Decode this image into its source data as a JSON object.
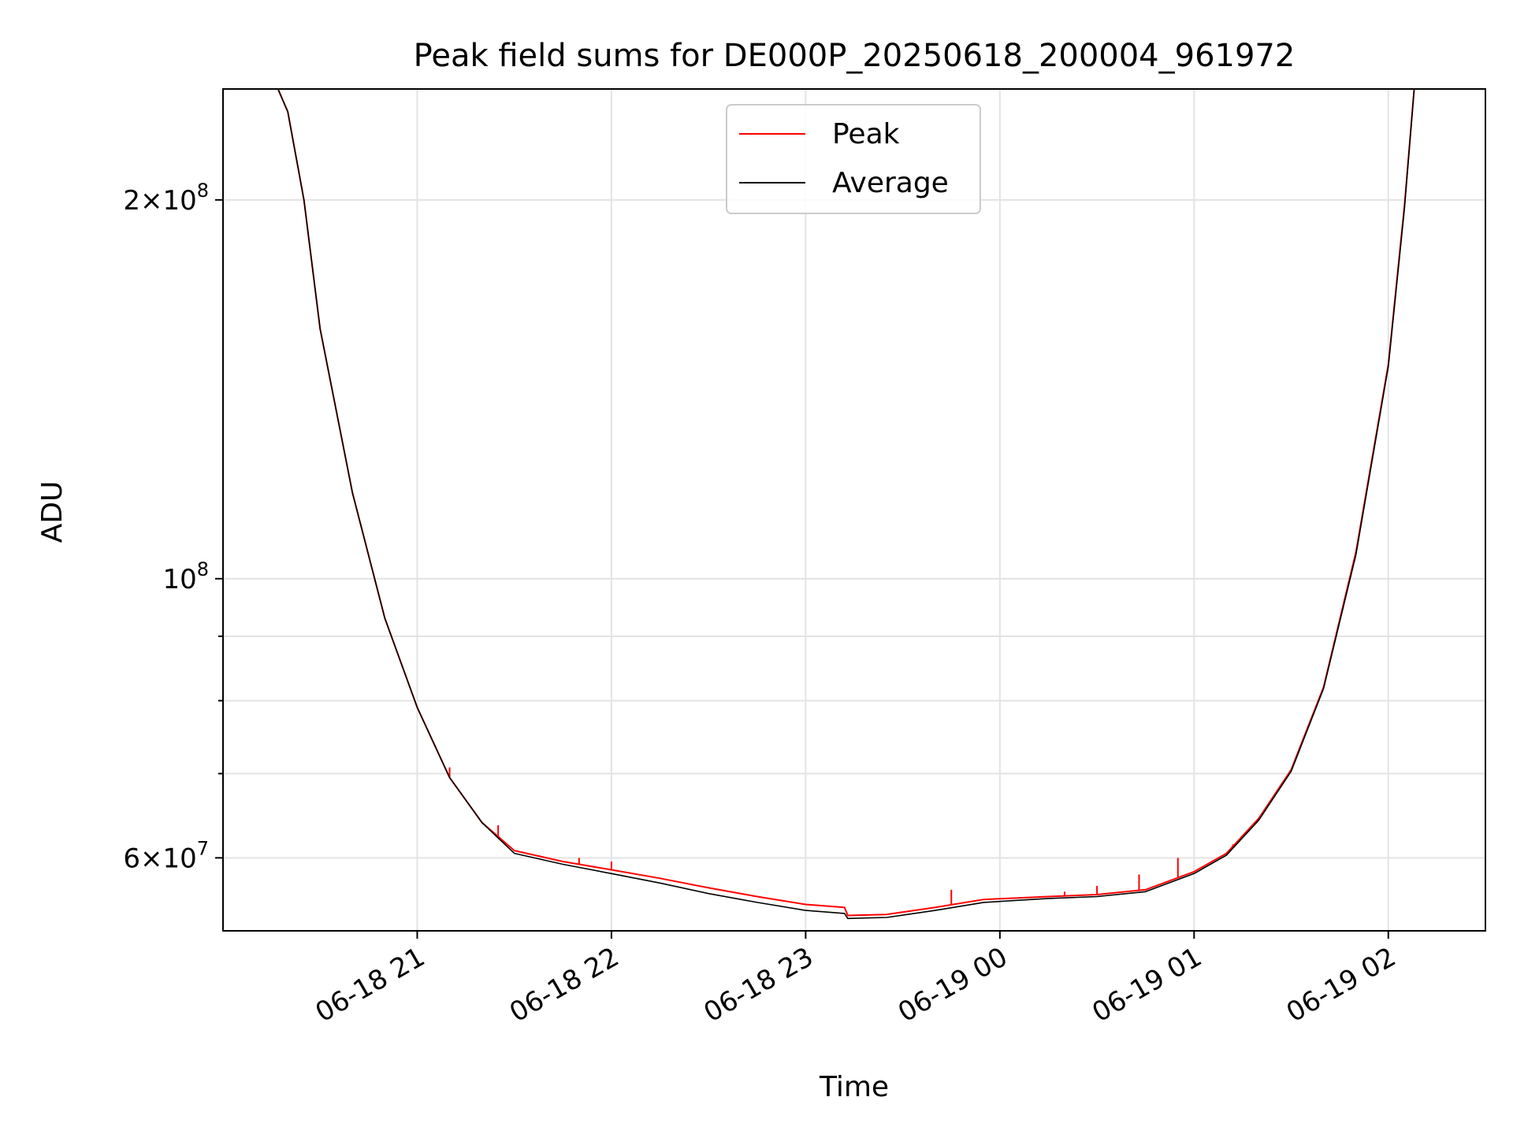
{
  "chart_data": {
    "type": "line",
    "title": "Peak field sums for DE000P_20250618_200004_961972",
    "xlabel": "Time",
    "ylabel": "ADU",
    "yscale": "log",
    "x_tick_labels": [
      "06-18 21",
      "06-18 22",
      "06-18 23",
      "06-19 00",
      "06-19 01",
      "06-19 02"
    ],
    "y_tick_labels": [
      {
        "value": 60000000,
        "base": "6",
        "times": "×",
        "exp": "10",
        "sup": "7"
      },
      {
        "value": 100000000,
        "base": "",
        "times": "",
        "exp": "10",
        "sup": "8"
      },
      {
        "value": 200000000,
        "base": "2",
        "times": "×",
        "exp": "10",
        "sup": "8"
      }
    ],
    "xlim": [
      "06-18 20:00",
      "06-19 02:30"
    ],
    "ylim": [
      52500000,
      245000000
    ],
    "grid": true,
    "legend_position": "upper center",
    "series": [
      {
        "name": "Peak",
        "color": "#ff0000",
        "x": [
          "06-18 20:00",
          "06-18 20:17",
          "06-18 20:20",
          "06-18 20:25",
          "06-18 20:30",
          "06-18 20:40",
          "06-18 20:50",
          "06-18 21:00",
          "06-18 21:10",
          "06-18 21:20",
          "06-18 21:30",
          "06-18 21:45",
          "06-18 22:00",
          "06-18 22:15",
          "06-18 22:30",
          "06-18 22:45",
          "06-18 23:00",
          "06-18 23:12",
          "06-18 23:13",
          "06-18 23:25",
          "06-18 23:40",
          "06-18 23:55",
          "06-19 00:15",
          "06-19 00:30",
          "06-19 00:45",
          "06-19 01:00",
          "06-19 01:10",
          "06-19 01:20",
          "06-19 01:30",
          "06-19 01:40",
          "06-19 01:50",
          "06-19 02:00",
          "06-19 02:05",
          "06-19 02:08",
          "06-19 02:30"
        ],
        "y": [
          245000000,
          245000000,
          235000000,
          200000000,
          158000000,
          117000000,
          93000000,
          79000000,
          69500000,
          64000000,
          60800000,
          59600000,
          58700000,
          57800000,
          56800000,
          55900000,
          55100000,
          54800000,
          54000000,
          54100000,
          54800000,
          55600000,
          55900000,
          56100000,
          56600000,
          58500000,
          60500000,
          64500000,
          70500000,
          82000000,
          105000000,
          148000000,
          198000000,
          245000000,
          245000000
        ],
        "spikes": [
          {
            "x": "06-18 21:10",
            "y": 70800000
          },
          {
            "x": "06-18 21:25",
            "y": 63700000
          },
          {
            "x": "06-18 21:50",
            "y": 60000000
          },
          {
            "x": "06-18 22:00",
            "y": 59600000
          },
          {
            "x": "06-18 23:45",
            "y": 56600000
          },
          {
            "x": "06-19 00:20",
            "y": 56400000
          },
          {
            "x": "06-19 00:30",
            "y": 57000000
          },
          {
            "x": "06-19 00:43",
            "y": 58200000
          },
          {
            "x": "06-19 00:55",
            "y": 60000000
          },
          {
            "x": "06-19 01:12",
            "y": 61500000
          }
        ]
      },
      {
        "name": "Average",
        "color": "#000000",
        "x": [
          "06-18 20:00",
          "06-18 20:17",
          "06-18 20:20",
          "06-18 20:25",
          "06-18 20:30",
          "06-18 20:40",
          "06-18 20:50",
          "06-18 21:00",
          "06-18 21:10",
          "06-18 21:20",
          "06-18 21:30",
          "06-18 21:45",
          "06-18 22:00",
          "06-18 22:15",
          "06-18 22:30",
          "06-18 22:45",
          "06-18 23:00",
          "06-18 23:12",
          "06-18 23:13",
          "06-18 23:25",
          "06-18 23:40",
          "06-18 23:55",
          "06-19 00:15",
          "06-19 00:30",
          "06-19 00:45",
          "06-19 01:00",
          "06-19 01:10",
          "06-19 01:20",
          "06-19 01:30",
          "06-19 01:40",
          "06-19 01:50",
          "06-19 02:00",
          "06-19 02:05",
          "06-19 02:08",
          "06-19 02:30"
        ],
        "y": [
          245000000,
          245000000,
          235000000,
          200000000,
          158000000,
          117000000,
          93000000,
          79000000,
          69500000,
          64000000,
          60500000,
          59300000,
          58300000,
          57300000,
          56200000,
          55300000,
          54500000,
          54200000,
          53700000,
          53800000,
          54500000,
          55300000,
          55700000,
          55900000,
          56400000,
          58300000,
          60300000,
          64300000,
          70300000,
          81800000,
          104500000,
          147500000,
          197000000,
          245000000,
          245000000
        ]
      }
    ]
  }
}
